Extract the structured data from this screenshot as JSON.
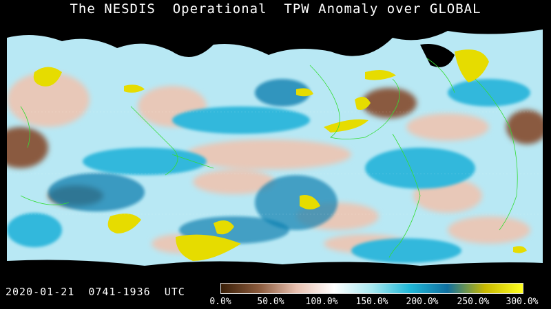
{
  "title": "The NESDIS  Operational  TPW Anomaly over GLOBAL",
  "timestamp": "2020-01-21  0741-1936  UTC",
  "colorbar": {
    "ticks": [
      "0.0%",
      "50.0%",
      "100.0%",
      "150.0%",
      "200.0%",
      "250.0%",
      "300.0%"
    ],
    "colors": [
      "#3a1f08",
      "#8a5a3c",
      "#e8c0b0",
      "#ffffff",
      "#a8e8f0",
      "#20b8d8",
      "#1070a0",
      "#c8b800",
      "#ffff20"
    ]
  },
  "legend_palette": {
    "ocean_base": "#b8e8f4",
    "wet_anomaly": "#30b8dc",
    "very_wet": "#1080b0",
    "extreme_wet": "#e6dc00",
    "dry_anomaly": "#e8c8b8",
    "very_dry": "#8a5a40",
    "no_data": "#000000",
    "coastline": "#33dd33"
  }
}
